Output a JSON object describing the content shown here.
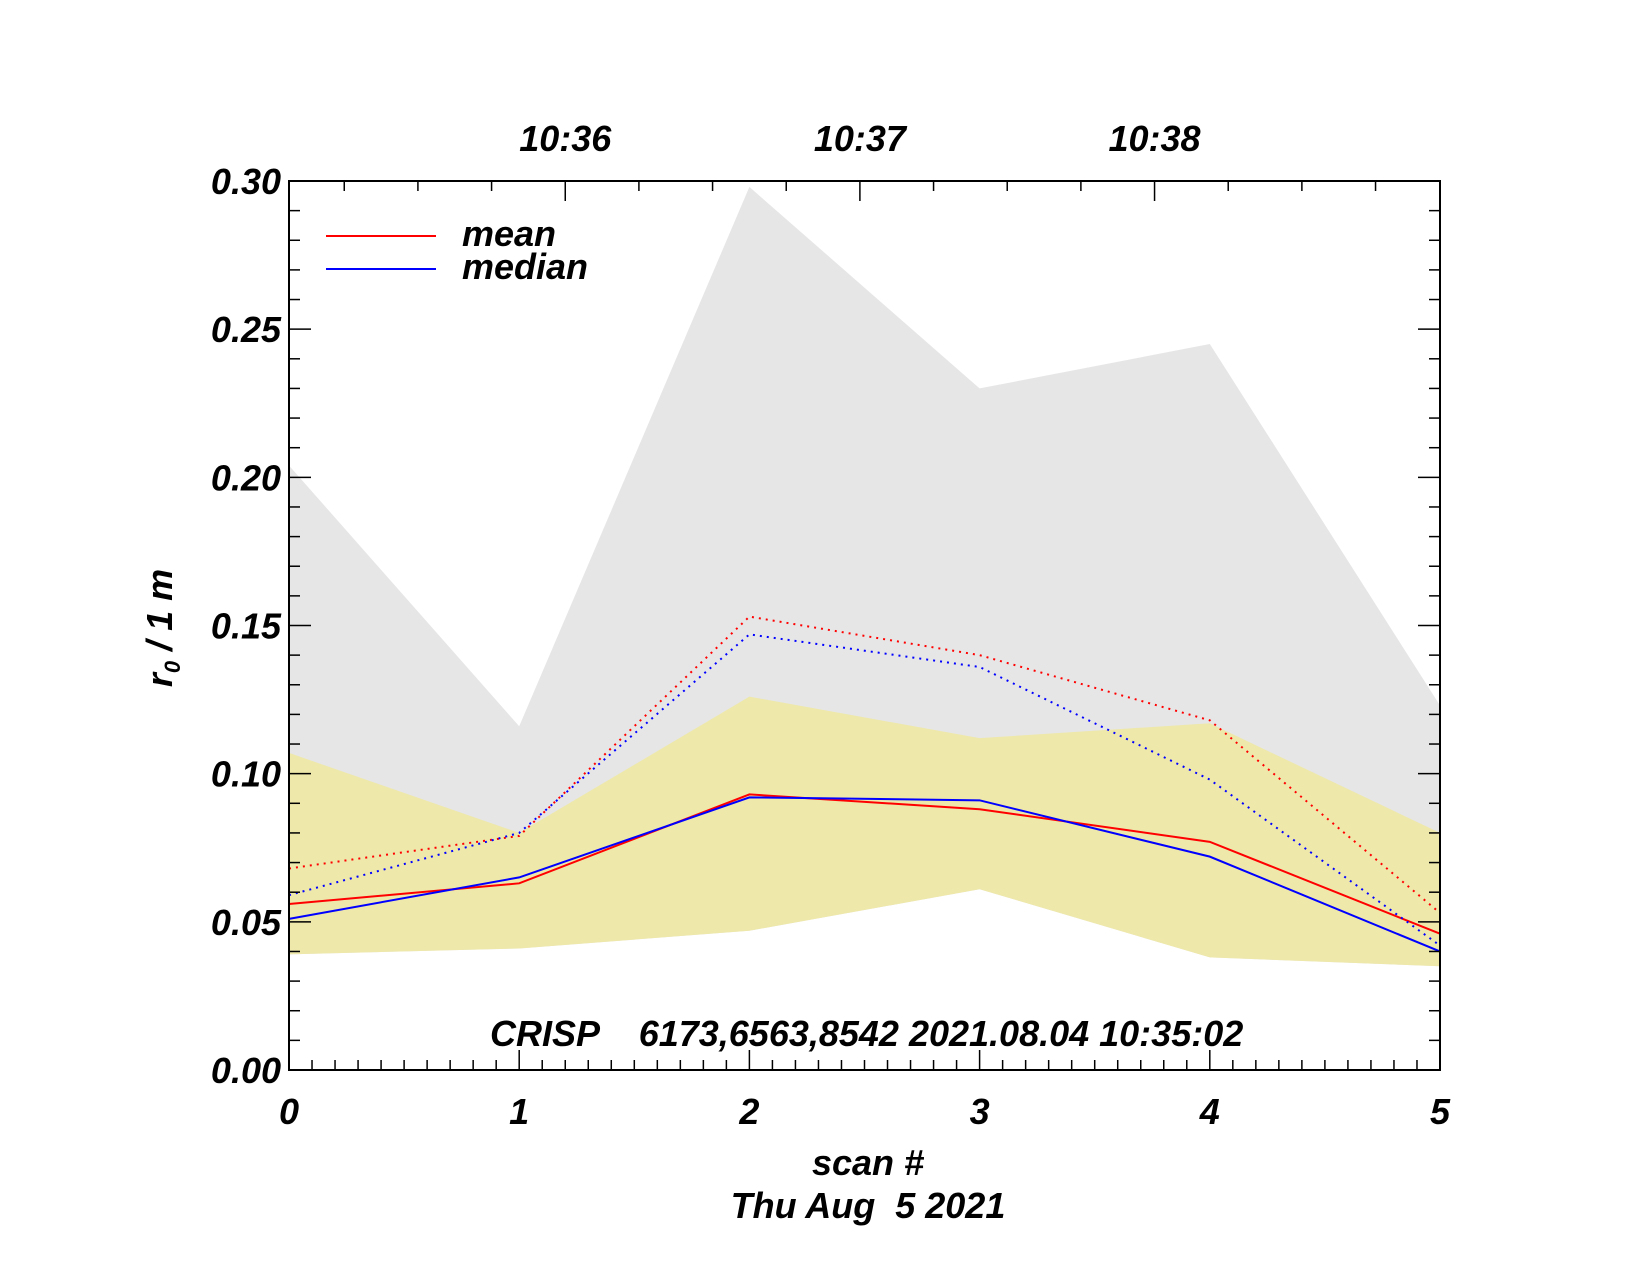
{
  "colors": {
    "mean": "#ff0000",
    "median": "#0000ff",
    "outer_band": "#e6e6e6",
    "inner_band": "#eee8aa",
    "axes": "#000000",
    "background": "#ffffff"
  },
  "chart_data": {
    "type": "line",
    "xlabel": "scan #",
    "date_label": "Thu Aug  5 2021",
    "ylabel_main": "r",
    "ylabel_sub": "0",
    "ylabel_rest": " / 1 m",
    "annotation": "CRISP    6173,6563,8542 2021.08.04 10:35:02",
    "xlim": [
      0,
      5
    ],
    "ylim": [
      0,
      0.3
    ],
    "grid": false,
    "legend_position": "top-left",
    "x_ticks": [
      "0",
      "1",
      "2",
      "3",
      "4",
      "5"
    ],
    "y_ticks": [
      "0.00",
      "0.05",
      "0.10",
      "0.15",
      "0.20",
      "0.25",
      "0.30"
    ],
    "top_axis": {
      "labels": [
        "10:36",
        "10:37",
        "10:38"
      ],
      "positions": [
        1.2,
        2.48,
        3.76
      ]
    },
    "x": [
      0,
      1,
      2,
      3,
      4,
      5
    ],
    "series": [
      {
        "name": "mean",
        "style": "solid",
        "color": "#ff0000",
        "values": [
          0.056,
          0.063,
          0.093,
          0.088,
          0.077,
          0.046
        ]
      },
      {
        "name": "median",
        "style": "solid",
        "color": "#0000ff",
        "values": [
          0.051,
          0.065,
          0.092,
          0.091,
          0.072,
          0.04
        ]
      },
      {
        "style": "dotted",
        "color": "#ff0000",
        "values": [
          0.068,
          0.079,
          0.153,
          0.14,
          0.118,
          0.053
        ]
      },
      {
        "style": "dotted",
        "color": "#0000ff",
        "values": [
          0.059,
          0.08,
          0.147,
          0.136,
          0.098,
          0.042
        ]
      }
    ],
    "bands": [
      {
        "color": "#e6e6e6",
        "lower": [
          0.039,
          0.041,
          0.047,
          0.061,
          0.038,
          0.035
        ],
        "upper": [
          0.204,
          0.116,
          0.298,
          0.23,
          0.245,
          0.123
        ]
      },
      {
        "color": "#eee8aa",
        "lower": [
          0.039,
          0.041,
          0.047,
          0.061,
          0.038,
          0.035
        ],
        "upper": [
          0.107,
          0.08,
          0.126,
          0.112,
          0.117,
          0.08
        ]
      }
    ]
  }
}
